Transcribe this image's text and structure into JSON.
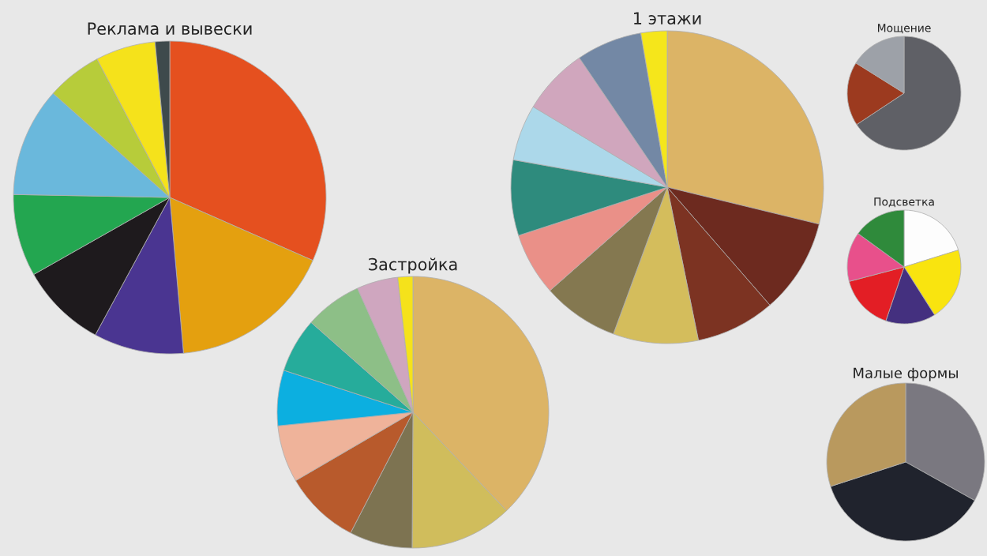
{
  "chart_data": [
    {
      "type": "pie",
      "title": "Реклама и вывески",
      "categories": [
        null,
        null,
        null,
        null,
        null,
        null,
        null,
        null,
        null
      ],
      "values": [
        31.6,
        17,
        9.3,
        8.9,
        8.5,
        11.3,
        5.7,
        6.2,
        1.5
      ],
      "colors": [
        "#e5501f",
        "#e4a00f",
        "#4a3591",
        "#1e1a1d",
        "#23a650",
        "#6ab8dc",
        "#b7cc3a",
        "#f5e21b",
        "#3e4a4c"
      ]
    },
    {
      "type": "pie",
      "title": "Застройка",
      "categories": [
        null,
        null,
        null,
        null,
        null,
        null,
        null,
        null,
        null,
        null
      ],
      "values": [
        37.9,
        12.2,
        7.5,
        9,
        6.8,
        6.6,
        6.5,
        6.8,
        4.9,
        1.8
      ],
      "colors": [
        "#dcb466",
        "#d0bd5c",
        "#7d7351",
        "#b85a2c",
        "#efb39a",
        "#0cafe0",
        "#26ac9b",
        "#8dbf87",
        "#cfa6bf",
        "#f5e21b"
      ]
    },
    {
      "type": "pie",
      "title": "1 этажи",
      "categories": [
        null,
        null,
        null,
        null,
        null,
        null,
        null,
        null,
        null,
        null,
        null
      ],
      "values": [
        28.8,
        9.8,
        8.2,
        8.8,
        7.9,
        6.5,
        7.8,
        5.8,
        6.9,
        6.8,
        2.7
      ],
      "colors": [
        "#dcb466",
        "#6d2a1f",
        "#7c3322",
        "#d4bd5c",
        "#847850",
        "#ea9088",
        "#2e8b7d",
        "#acd8ea",
        "#d0a6bd",
        "#7388a5",
        "#f5e61b"
      ]
    },
    {
      "type": "pie",
      "title": "Мощение",
      "categories": [
        null,
        null,
        null
      ],
      "values": [
        65.7,
        18.2,
        16.1
      ],
      "colors": [
        "#5f6066",
        "#9c3a1f",
        "#9da1a8"
      ]
    },
    {
      "type": "pie",
      "title": "Подсветка",
      "categories": [
        null,
        null,
        null,
        null,
        null,
        null
      ],
      "values": [
        20.2,
        20.8,
        14.2,
        15.7,
        14.1,
        15
      ],
      "colors": [
        "#fdfdfd",
        "#f9e40f",
        "#44307f",
        "#e31e25",
        "#e8508b",
        "#2f8a3b"
      ]
    },
    {
      "type": "pie",
      "title": "Малые формы",
      "categories": [
        null,
        null,
        null
      ],
      "values": [
        33.1,
        36.9,
        30
      ],
      "colors": [
        "#7a7880",
        "#20232d",
        "#b9995e"
      ]
    }
  ]
}
